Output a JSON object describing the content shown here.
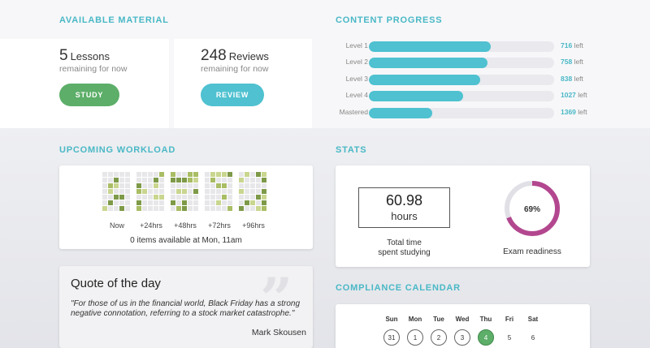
{
  "available_material": {
    "title": "AVAILABLE MATERIAL",
    "lessons": {
      "count": "5",
      "label": "Lessons",
      "sub": "remaining for now",
      "button": "STUDY"
    },
    "reviews": {
      "count": "248",
      "label": "Reviews",
      "sub": "remaining for now",
      "button": "REVIEW"
    }
  },
  "content_progress": {
    "title": "CONTENT PROGRESS",
    "left_suffix": "left",
    "levels": [
      {
        "label": "Level 1",
        "fraction": 0.66,
        "left": "716"
      },
      {
        "label": "Level 2",
        "fraction": 0.64,
        "left": "758"
      },
      {
        "label": "Level 3",
        "fraction": 0.6,
        "left": "838"
      },
      {
        "label": "Level 4",
        "fraction": 0.51,
        "left": "1027"
      },
      {
        "label": "Mastered",
        "fraction": 0.34,
        "left": "1369"
      }
    ]
  },
  "upcoming_workload": {
    "title": "UPCOMING WORKLOAD",
    "columns": [
      "Now",
      "+24hrs",
      "+48hrs",
      "+72hrs",
      "+96hrs"
    ],
    "status": "0 items available at Mon, 11am"
  },
  "stats": {
    "title": "STATS",
    "hours_value": "60.98",
    "hours_unit": "hours",
    "hours_caption_1": "Total time",
    "hours_caption_2": "spent studying",
    "readiness_value": "69%",
    "readiness_fraction": 0.69,
    "readiness_caption": "Exam readiness"
  },
  "quote": {
    "title": "Quote of the day",
    "text": "\"For those of us in the financial world, Black Friday has a strong negative connotation, referring to a stock market catastrophe.\"",
    "author": "Mark Skousen"
  },
  "compliance_calendar": {
    "title": "COMPLIANCE CALENDAR",
    "days": [
      "Sun",
      "Mon",
      "Tue",
      "Wed",
      "Thu",
      "Fri",
      "Sat"
    ],
    "dates": [
      "31",
      "1",
      "2",
      "3",
      "4",
      "5",
      "6"
    ]
  },
  "colors": {
    "accent": "#49b8c6",
    "bar": "#4fc1d0",
    "study": "#5cae68",
    "review": "#4fc1d0",
    "ring": "#b3478f",
    "today": "#5cae68"
  }
}
